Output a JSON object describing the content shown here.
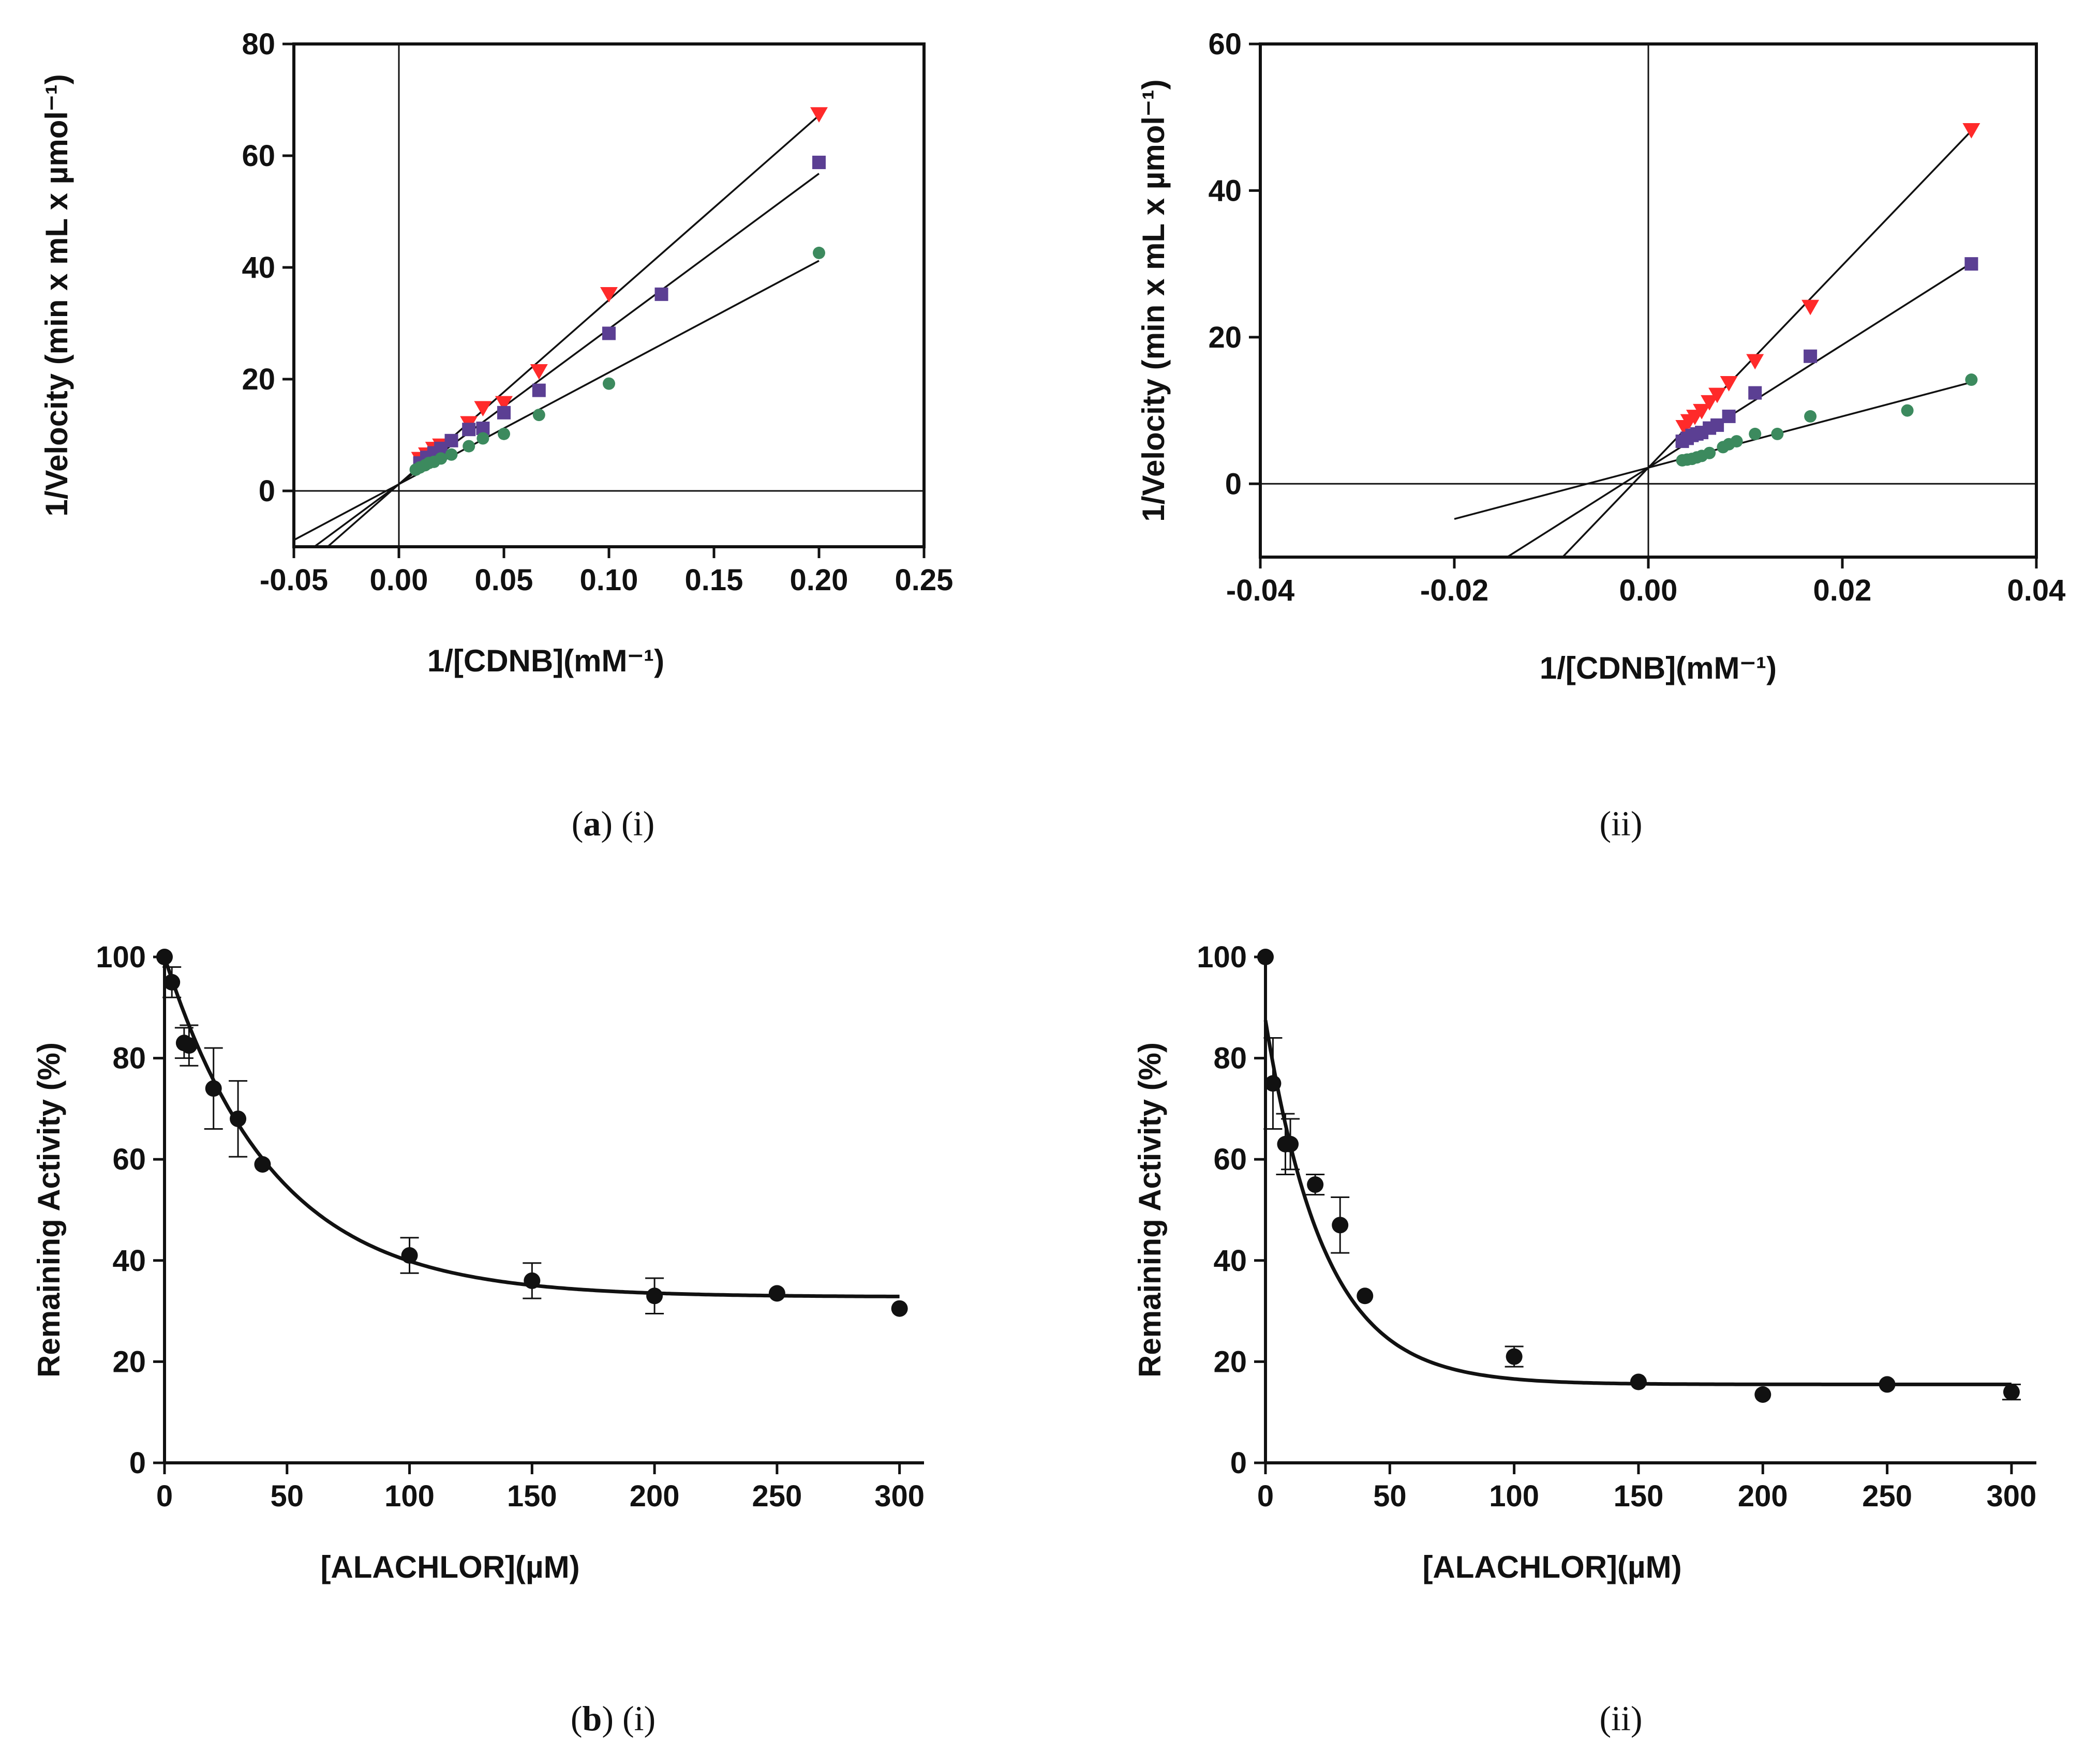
{
  "figure": {
    "captions": [
      {
        "bold": "a",
        "text": " (i)"
      },
      {
        "bold": "",
        "text": "(ii)"
      },
      {
        "bold": "b",
        "text": " (i)"
      },
      {
        "bold": "",
        "text": "(ii)"
      }
    ]
  },
  "chart_data": [
    {
      "type": "scatter",
      "title": "",
      "xlabel": "1/[CDNB](mM⁻¹)",
      "ylabel": "1/Velocity (min x mL x µmol⁻¹)",
      "xlim": [
        -0.05,
        0.25
      ],
      "ylim": [
        -10,
        80
      ],
      "xticks": [
        -0.05,
        0.0,
        0.05,
        0.1,
        0.15,
        0.2,
        0.25
      ],
      "xtick_labels": [
        "-0.05",
        "0.00",
        "0.05",
        "0.10",
        "0.15",
        "0.20",
        "0.25"
      ],
      "yticks": [
        0,
        20,
        40,
        60,
        80
      ],
      "ytick_labels": [
        "0",
        "20",
        "40",
        "60",
        "80"
      ],
      "series": [
        {
          "name": "series-1",
          "marker": "triangle-down",
          "color": "#ff2a2a",
          "x": [
            0.01,
            0.0133,
            0.0167,
            0.02,
            0.0333,
            0.04,
            0.05,
            0.0667,
            0.1,
            0.2
          ],
          "y": [
            5.8,
            6.6,
            7.6,
            8.2,
            12.2,
            14.9,
            15.8,
            21.5,
            35.3,
            67.5
          ],
          "fit": {
            "slope": 330,
            "intercept": 1.2,
            "x_range": [
              -0.05,
              0.2
            ]
          }
        },
        {
          "name": "series-2",
          "marker": "square",
          "color": "#5b3f93",
          "x": [
            0.01,
            0.0133,
            0.0167,
            0.02,
            0.025,
            0.0333,
            0.04,
            0.05,
            0.0667,
            0.1,
            0.125,
            0.2
          ],
          "y": [
            5.0,
            6.0,
            6.8,
            7.6,
            9.0,
            11.0,
            11.2,
            14.0,
            18.0,
            28.2,
            35.2,
            58.8
          ],
          "fit": {
            "slope": 278,
            "intercept": 1.2,
            "x_range": [
              -0.05,
              0.2
            ]
          }
        },
        {
          "name": "series-3",
          "marker": "circle",
          "color": "#3c8a5e",
          "x": [
            0.008,
            0.01,
            0.0125,
            0.0143,
            0.0167,
            0.02,
            0.025,
            0.0333,
            0.04,
            0.05,
            0.0667,
            0.1,
            0.2
          ],
          "y": [
            3.8,
            4.2,
            4.6,
            5.0,
            5.2,
            5.8,
            6.5,
            8.0,
            9.4,
            10.2,
            13.6,
            19.2,
            42.6
          ],
          "fit": {
            "slope": 200,
            "intercept": 1.2,
            "x_range": [
              -0.05,
              0.2
            ]
          }
        }
      ]
    },
    {
      "type": "scatter",
      "title": "",
      "xlabel": "1/[CDNB](mM⁻¹)",
      "ylabel": "1/Velocity (min x mL x µmol⁻¹)",
      "xlim": [
        -0.04,
        0.04
      ],
      "ylim": [
        -10,
        60
      ],
      "xticks": [
        -0.04,
        -0.02,
        0.0,
        0.02,
        0.04
      ],
      "xtick_labels": [
        "-0.04",
        "-0.02",
        "0.00",
        "0.02",
        "0.04"
      ],
      "yticks": [
        0,
        20,
        40,
        60
      ],
      "ytick_labels": [
        "0",
        "20",
        "40",
        "60"
      ],
      "series": [
        {
          "name": "series-1",
          "marker": "triangle-down",
          "color": "#ff2a2a",
          "x": [
            0.0037,
            0.0042,
            0.0048,
            0.0055,
            0.0063,
            0.0071,
            0.0083,
            0.011,
            0.0167,
            0.0333
          ],
          "y": [
            7.8,
            8.6,
            9.2,
            10.0,
            11.2,
            12.2,
            13.8,
            16.8,
            24.2,
            48.3
          ],
          "fit": {
            "slope": 1380,
            "intercept": 2.2,
            "x_range": [
              -0.0088,
              0.0333
            ]
          }
        },
        {
          "name": "series-2",
          "marker": "square",
          "color": "#5b3f93",
          "x": [
            0.0035,
            0.004,
            0.0045,
            0.005,
            0.0055,
            0.0063,
            0.0071,
            0.0083,
            0.011,
            0.0167,
            0.0333
          ],
          "y": [
            5.8,
            6.2,
            6.6,
            6.8,
            7.0,
            7.6,
            8.0,
            9.2,
            12.4,
            17.4,
            30.0
          ],
          "fit": {
            "slope": 838,
            "intercept": 2.2,
            "x_range": [
              -0.0149,
              0.0333
            ]
          }
        },
        {
          "name": "series-3",
          "marker": "circle",
          "color": "#3c8a5e",
          "x": [
            0.0035,
            0.004,
            0.0045,
            0.005,
            0.0055,
            0.0063,
            0.0077,
            0.0083,
            0.0091,
            0.011,
            0.0133,
            0.0167,
            0.0267,
            0.0333
          ],
          "y": [
            3.2,
            3.3,
            3.4,
            3.6,
            3.8,
            4.2,
            5.0,
            5.4,
            5.8,
            6.8,
            6.8,
            9.2,
            10.0,
            14.2
          ],
          "fit": {
            "slope": 350,
            "intercept": 2.2,
            "x_range": [
              -0.02,
              0.0333
            ]
          }
        }
      ]
    },
    {
      "type": "scatter",
      "title": "",
      "xlabel": "[ALACHLOR](µM)",
      "ylabel": "Remaining Activity (%)",
      "xlim": [
        0,
        310
      ],
      "ylim": [
        0,
        100
      ],
      "xticks": [
        0,
        50,
        100,
        150,
        200,
        250,
        300
      ],
      "xtick_labels": [
        "0",
        "50",
        "100",
        "150",
        "200",
        "250",
        "300"
      ],
      "yticks": [
        0,
        20,
        40,
        60,
        80,
        100
      ],
      "ytick_labels": [
        "0",
        "20",
        "40",
        "60",
        "80",
        "100"
      ],
      "series": [
        {
          "name": "remaining-activity",
          "marker": "circle",
          "color": "#111111",
          "x": [
            0,
            3,
            8,
            10,
            20,
            30,
            40,
            100,
            150,
            200,
            250,
            300
          ],
          "y": [
            100,
            95,
            83,
            82.5,
            74,
            68,
            59,
            41,
            36,
            33,
            33.5,
            30.5
          ],
          "err": [
            0,
            3,
            3,
            4,
            8,
            7.5,
            0,
            3.5,
            3.5,
            3.5,
            0,
            0
          ]
        }
      ],
      "fit": {
        "model": "exponential-decay",
        "plateau": 32.8,
        "span": 67.2,
        "k": 0.0225,
        "x_range": [
          0,
          300
        ]
      }
    },
    {
      "type": "scatter",
      "title": "",
      "xlabel": "[ALACHLOR](µM)",
      "ylabel": "Remaining Activity (%)",
      "xlim": [
        0,
        310
      ],
      "ylim": [
        0,
        100
      ],
      "xticks": [
        0,
        50,
        100,
        150,
        200,
        250,
        300
      ],
      "xtick_labels": [
        "0",
        "50",
        "100",
        "150",
        "200",
        "250",
        "300"
      ],
      "yticks": [
        0,
        20,
        40,
        60,
        80,
        100
      ],
      "ytick_labels": [
        "0",
        "20",
        "40",
        "60",
        "80",
        "100"
      ],
      "series": [
        {
          "name": "remaining-activity",
          "marker": "circle",
          "color": "#111111",
          "x": [
            0,
            3,
            8,
            10,
            20,
            30,
            40,
            100,
            150,
            200,
            250,
            300
          ],
          "y": [
            100,
            75,
            63,
            63,
            55,
            47,
            33,
            21,
            16,
            13.5,
            15.5,
            14
          ],
          "err": [
            0,
            9,
            6,
            5,
            2,
            5.5,
            0,
            2,
            0,
            0,
            0,
            1.5
          ]
        }
      ],
      "fit": {
        "model": "exponential-decay",
        "plateau": 15.5,
        "span": 72,
        "k": 0.042,
        "x_range": [
          0,
          300
        ]
      }
    }
  ]
}
